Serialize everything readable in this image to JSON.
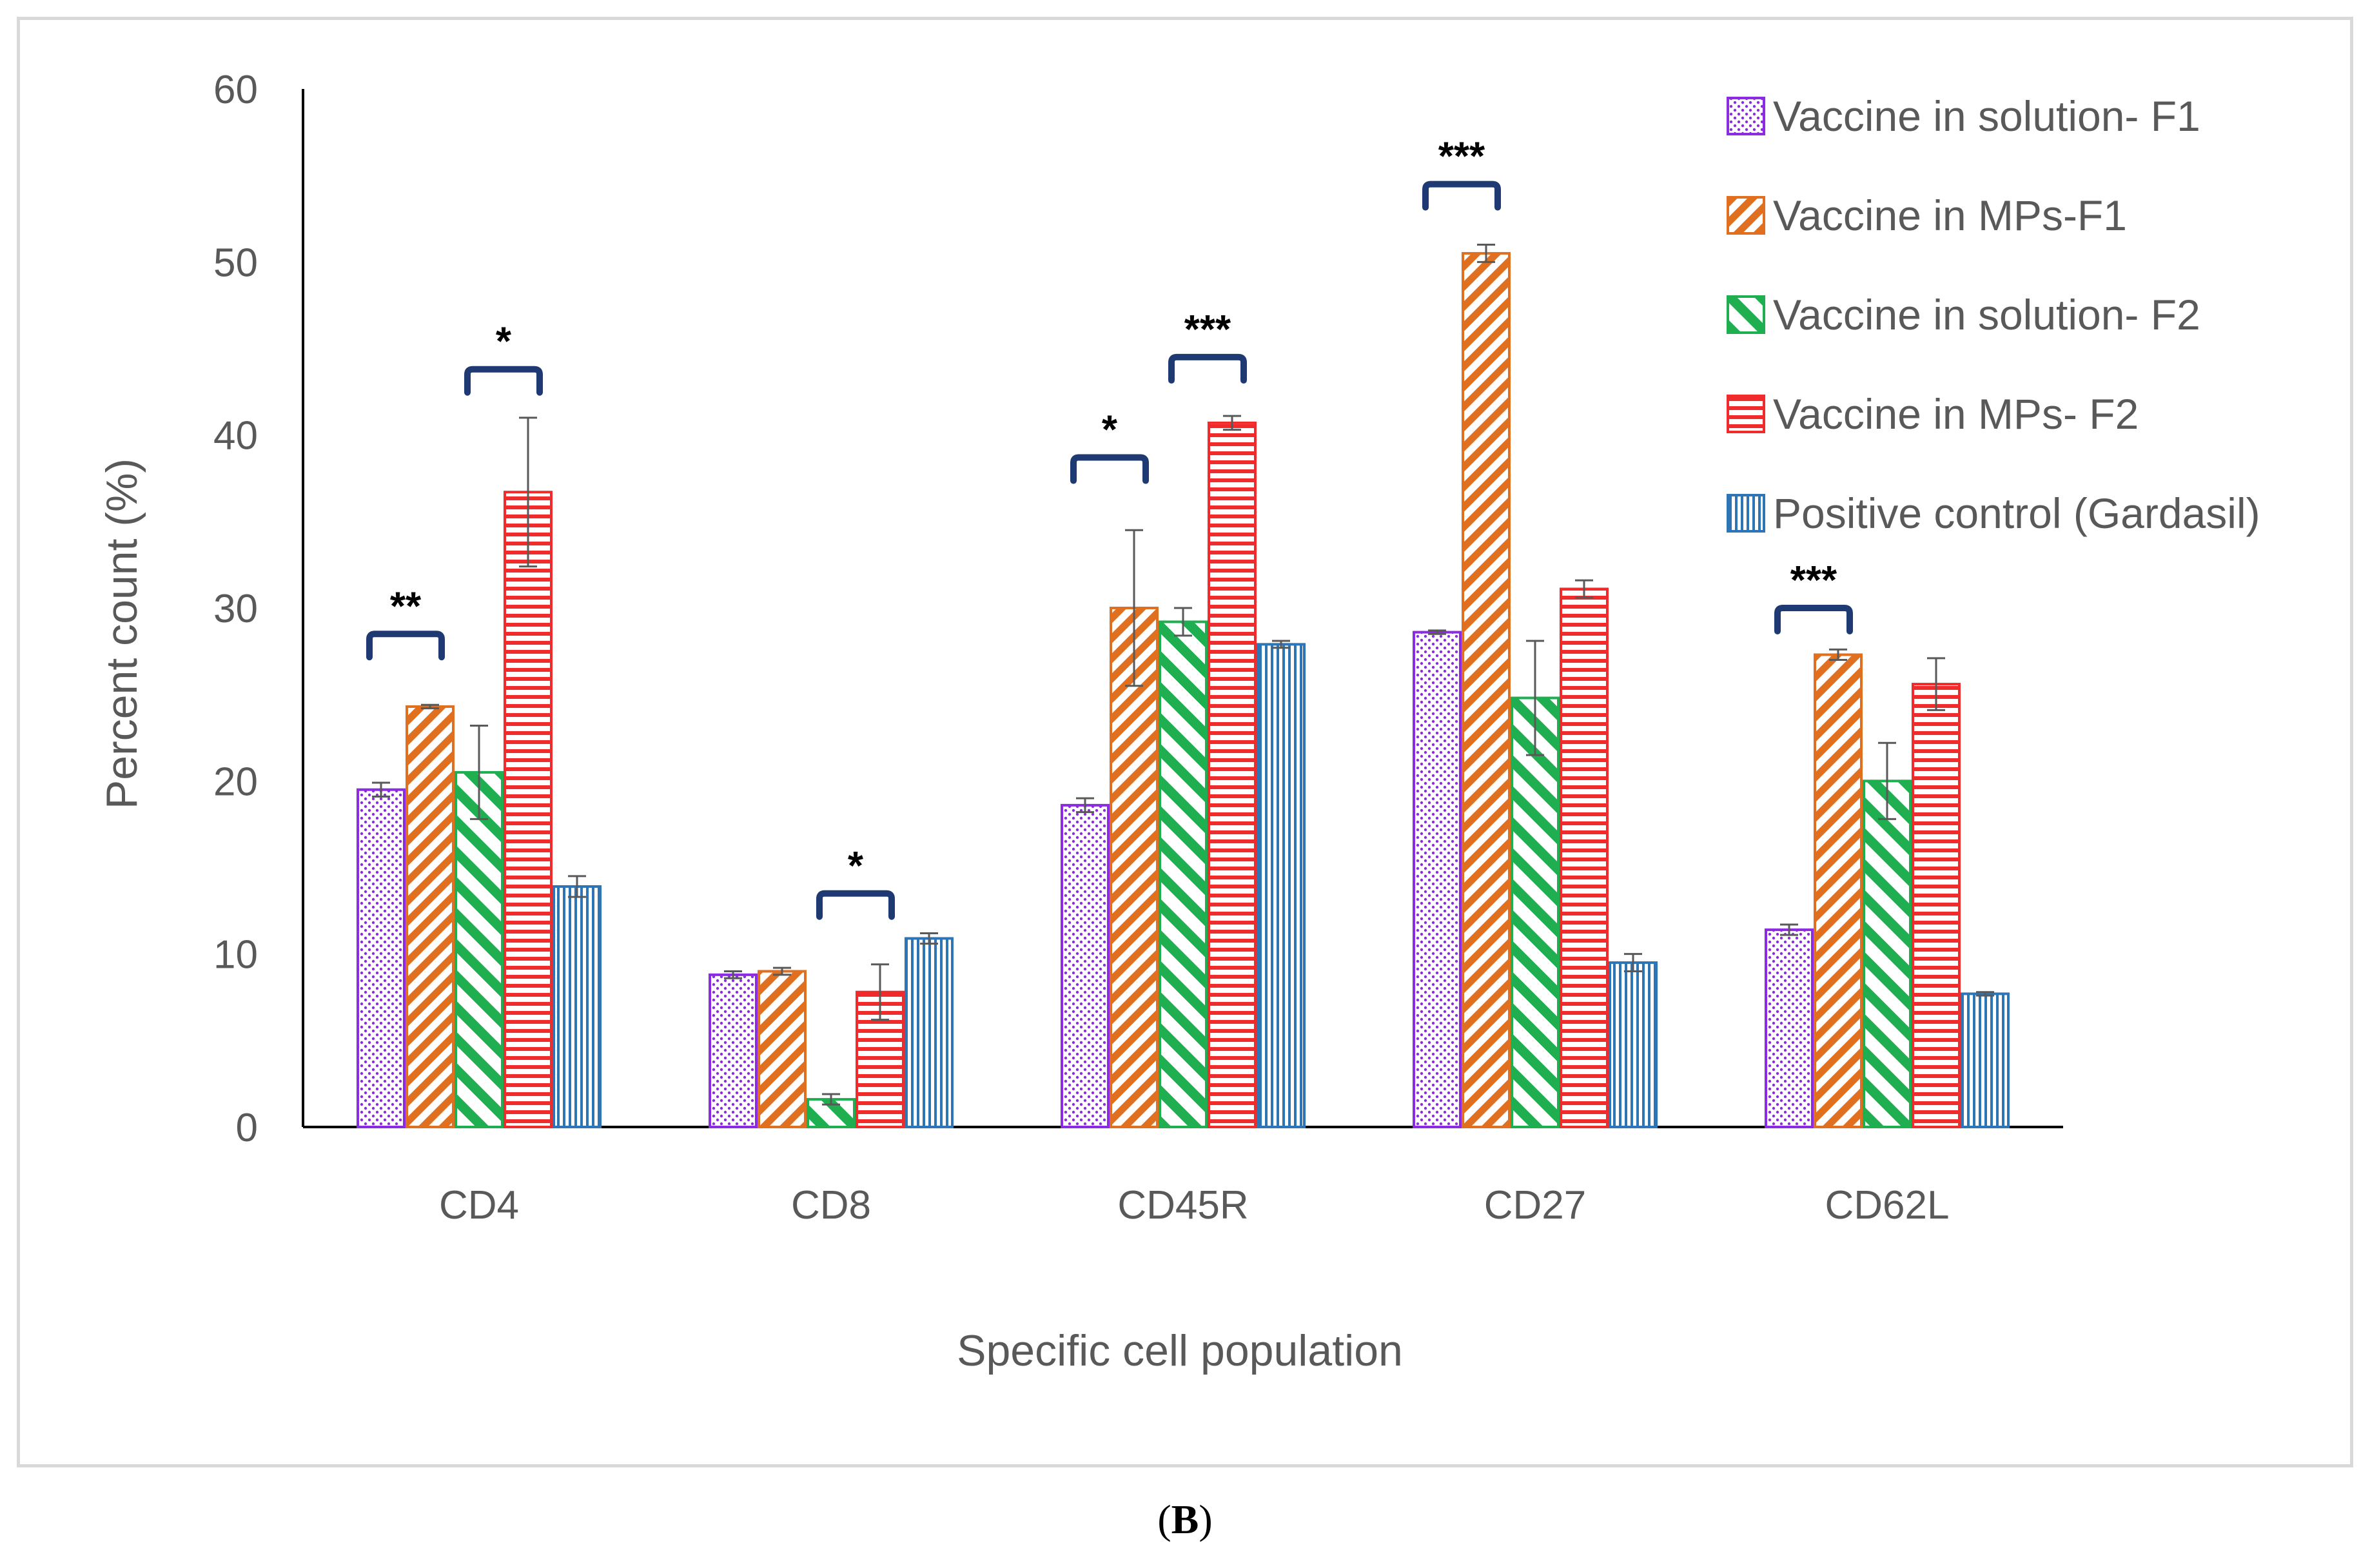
{
  "panel_label": {
    "open": "(",
    "letter": "B",
    "close": ")"
  },
  "chart_data": {
    "type": "bar",
    "title": "",
    "xlabel": "Specific cell population",
    "ylabel": "Percent count (%)",
    "ylim": [
      0,
      60
    ],
    "yticks": [
      0,
      10,
      20,
      30,
      40,
      50,
      60
    ],
    "categories": [
      "CD4",
      "CD8",
      "CD45R",
      "CD27",
      "CD62L"
    ],
    "legend_position": "top-right",
    "series": [
      {
        "name": "Vaccine in solution- F1",
        "color": "#8b2be2",
        "pattern": "dots",
        "values": [
          19.5,
          8.8,
          18.6,
          28.6,
          11.4
        ],
        "errors": [
          0.4,
          0.2,
          0.4,
          0.1,
          0.3
        ]
      },
      {
        "name": "Vaccine in MPs-F1",
        "color": "#e07020",
        "pattern": "diag-up",
        "values": [
          24.3,
          9.0,
          30.0,
          50.5,
          27.3
        ],
        "errors": [
          0.1,
          0.2,
          4.5,
          0.5,
          0.3
        ]
      },
      {
        "name": "Vaccine in solution- F2",
        "color": "#1fae50",
        "pattern": "diag-down",
        "values": [
          20.5,
          1.6,
          29.2,
          24.8,
          20.0
        ],
        "errors": [
          2.7,
          0.3,
          0.8,
          3.3,
          2.2
        ]
      },
      {
        "name": "Vaccine in MPs- F2",
        "color": "#ef2b2b",
        "pattern": "horizontal",
        "values": [
          36.7,
          7.8,
          40.7,
          31.1,
          25.6
        ],
        "errors": [
          4.3,
          1.6,
          0.4,
          0.5,
          1.5
        ]
      },
      {
        "name": "Positive control (Gardasil)",
        "color": "#2e75b6",
        "pattern": "vertical",
        "values": [
          13.9,
          10.9,
          27.9,
          9.5,
          7.7
        ],
        "errors": [
          0.6,
          0.3,
          0.2,
          0.5,
          0.1
        ]
      }
    ],
    "significance": [
      {
        "category": 0,
        "from_series": 0,
        "to_series": 1,
        "at_value": 28.5,
        "label": "**"
      },
      {
        "category": 0,
        "from_series": 2,
        "to_series": 3,
        "at_value": 43.8,
        "label": "*"
      },
      {
        "category": 1,
        "from_series": 2,
        "to_series": 3,
        "at_value": 13.5,
        "label": "*"
      },
      {
        "category": 2,
        "from_series": 0,
        "to_series": 1,
        "at_value": 38.7,
        "label": "*"
      },
      {
        "category": 2,
        "from_series": 2,
        "to_series": 3,
        "at_value": 44.5,
        "label": "***"
      },
      {
        "category": 3,
        "from_series": 0,
        "to_series": 1,
        "at_value": 54.5,
        "label": "***"
      },
      {
        "category": 4,
        "from_series": 0,
        "to_series": 1,
        "at_value": 30.0,
        "label": "***"
      }
    ]
  }
}
